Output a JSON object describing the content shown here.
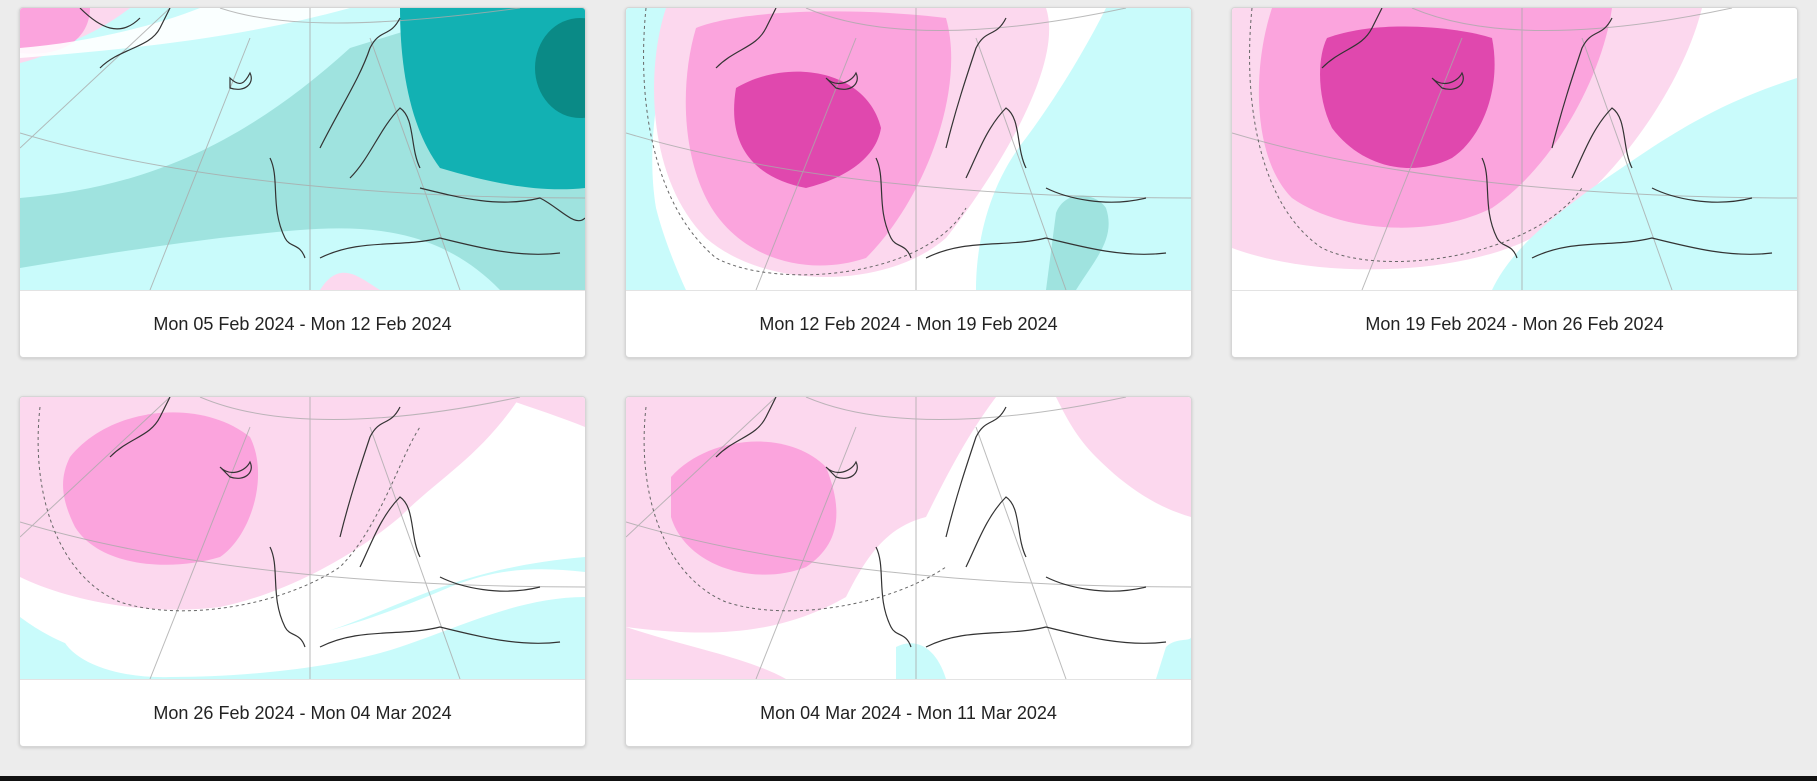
{
  "colors": {
    "page_background": "#ececec",
    "anomaly_strong_positive": "#e048ae",
    "anomaly_positive": "#fba4dd",
    "anomaly_weak_positive": "#fcd8ee",
    "anomaly_weak_negative": "#c9fbfb",
    "anomaly_negative": "#9fe3df",
    "anomaly_strong_negative": "#12b1b3",
    "anomaly_very_strong_negative": "#0a8a86"
  },
  "forecast_maps": [
    {
      "period_label": "Mon 05 Feb 2024 - Mon 12 Feb 2024",
      "map_type": "weekly-anomaly-map"
    },
    {
      "period_label": "Mon 12 Feb 2024 - Mon 19 Feb 2024",
      "map_type": "weekly-anomaly-map"
    },
    {
      "period_label": "Mon 19 Feb 2024 - Mon 26 Feb 2024",
      "map_type": "weekly-anomaly-map"
    },
    {
      "period_label": "Mon 26 Feb 2024 - Mon 04 Mar 2024",
      "map_type": "weekly-anomaly-map"
    },
    {
      "period_label": "Mon 04 Mar 2024 - Mon 11 Mar 2024",
      "map_type": "weekly-anomaly-map"
    }
  ]
}
